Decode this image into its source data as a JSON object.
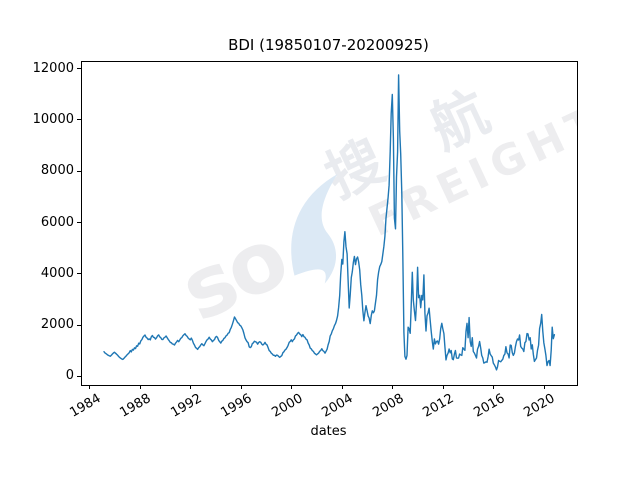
{
  "figure": {
    "background": "#ffffff",
    "title": "BDI (19850107-20200925)"
  },
  "watermark": {
    "text_left": "so",
    "text_right": "FREIGHT",
    "text_cn": "搜 航",
    "swoosh_color": "#dce9f5",
    "latin_color": "#ededef",
    "cn_color": "#e9ebef"
  },
  "chart_data": {
    "type": "line",
    "title": "BDI (19850107-20200925)",
    "xlabel": "dates",
    "ylabel": "",
    "grid": false,
    "legend": "none",
    "line_color": "#1f77b4",
    "frame_color": "#000000",
    "xlim": [
      1983.3,
      2022.5
    ],
    "ylim": [
      -300,
      12300
    ],
    "x_ticks": [
      1984,
      1988,
      1992,
      1996,
      2000,
      2004,
      2008,
      2012,
      2016,
      2020
    ],
    "y_ticks": [
      0,
      2000,
      4000,
      6000,
      8000,
      10000,
      12000
    ],
    "series": [
      {
        "name": "BDI",
        "x_start": 1985.04,
        "x_step": 0.083333,
        "values": [
          1000,
          950,
          920,
          890,
          860,
          840,
          820,
          860,
          910,
          950,
          980,
          940,
          900,
          860,
          810,
          770,
          740,
          710,
          700,
          740,
          790,
          830,
          880,
          920,
          960,
          1040,
          990,
          1090,
          1060,
          1150,
          1120,
          1230,
          1210,
          1330,
          1300,
          1420,
          1470,
          1560,
          1610,
          1650,
          1560,
          1530,
          1470,
          1500,
          1460,
          1580,
          1630,
          1560,
          1550,
          1490,
          1545,
          1620,
          1655,
          1580,
          1545,
          1480,
          1475,
          1540,
          1565,
          1610,
          1550,
          1480,
          1430,
          1360,
          1350,
          1300,
          1290,
          1260,
          1330,
          1380,
          1440,
          1390,
          1450,
          1520,
          1550,
          1620,
          1660,
          1700,
          1630,
          1600,
          1530,
          1495,
          1465,
          1530,
          1445,
          1330,
          1255,
          1165,
          1130,
          1090,
          1160,
          1195,
          1265,
          1310,
          1265,
          1235,
          1315,
          1395,
          1465,
          1495,
          1565,
          1490,
          1460,
          1390,
          1435,
          1470,
          1565,
          1595,
          1550,
          1440,
          1390,
          1335,
          1410,
          1445,
          1515,
          1545,
          1615,
          1645,
          1715,
          1745,
          1860,
          1945,
          2070,
          2200,
          2352,
          2285,
          2210,
          2135,
          2105,
          2035,
          2005,
          1935,
          1845,
          1710,
          1540,
          1460,
          1390,
          1355,
          1190,
          1160,
          1195,
          1310,
          1345,
          1410,
          1390,
          1360,
          1290,
          1360,
          1390,
          1360,
          1290,
          1260,
          1295,
          1360,
          1290,
          1260,
          1160,
          1040,
          1010,
          940,
          910,
          860,
          860,
          820,
          865,
          860,
          810,
          777,
          815,
          845,
          960,
          995,
          1065,
          1095,
          1165,
          1245,
          1365,
          1395,
          1465,
          1390,
          1465,
          1495,
          1615,
          1645,
          1715,
          1750,
          1690,
          1660,
          1590,
          1665,
          1590,
          1560,
          1490,
          1460,
          1340,
          1260,
          1140,
          1110,
          1040,
          1010,
          940,
          910,
          875,
          915,
          945,
          1015,
          1045,
          1115,
          1040,
          1010,
          945,
          1015,
          1095,
          1265,
          1395,
          1615,
          1695,
          1815,
          1895,
          2015,
          2095,
          2215,
          2395,
          2715,
          3195,
          4015,
          4595,
          4415,
          5295,
          5681,
          5095,
          4815,
          3795,
          2705,
          3215,
          3895,
          4115,
          4495,
          4715,
          4395,
          4615,
          4695,
          4515,
          4195,
          3615,
          3195,
          2615,
          2205,
          2515,
          2795,
          2615,
          2395,
          2315,
          2095,
          2415,
          2595,
          2515,
          2595,
          2915,
          3195,
          3815,
          4095,
          4315,
          4395,
          4515,
          4795,
          5115,
          5495,
          6215,
          6595,
          7015,
          7495,
          8815,
          10295,
          11033,
          9295,
          6215,
          5795,
          7815,
          8795,
          11793,
          9595,
          8715,
          7195,
          4795,
          1755,
          815,
          705,
          855,
          1955,
          1895,
          1715,
          2795,
          4095,
          3015,
          2595,
          2215,
          2895,
          4291,
          3105,
          3195,
          2715,
          3195,
          3015,
          3995,
          2515,
          1805,
          2395,
          2515,
          2695,
          2215,
          1795,
          1395,
          1105,
          1495,
          1305,
          1395,
          1415,
          1295,
          1505,
          1895,
          2105,
          1895,
          1705,
          1195,
          680,
          855,
          945,
          1105,
          955,
          1045,
          720,
          685,
          905,
          1045,
          755,
          745,
          755,
          905,
          875,
          855,
          1155,
          1095,
          1055,
          1795,
          2105,
          1545,
          2330,
          1395,
          1205,
          1545,
          1005,
          945,
          855,
          755,
          1095,
          1205,
          1395,
          1145,
          855,
          755,
          555,
          575,
          605,
          585,
          805,
          1095,
          905,
          845,
          785,
          555,
          485,
          405,
          290,
          405,
          655,
          625,
          605,
          655,
          705,
          845,
          905,
          1195,
          955,
          905,
          755,
          1255,
          1245,
          955,
          855,
          945,
          1195,
          1395,
          1495,
          1455,
          1655,
          1205,
          1145,
          1105,
          1005,
          1355,
          1395,
          1705,
          1695,
          1455,
          1545,
          1105,
          1270,
          905,
          620,
          685,
          755,
          1055,
          1255,
          1905,
          2105,
          2450,
          1795,
          1355,
          1105,
          855,
          455,
          605,
          655,
          455,
          1055,
          1955,
          1505,
          1664
        ]
      }
    ]
  }
}
